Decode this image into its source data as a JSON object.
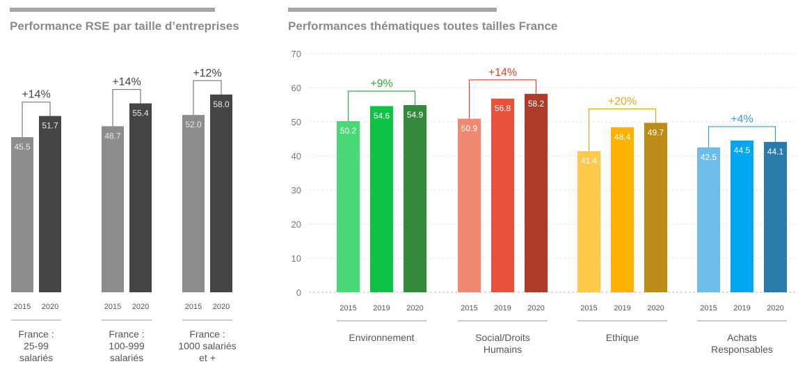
{
  "chart_data": [
    {
      "type": "bar",
      "title": "Performance RSE par taille d’entreprises",
      "series": [
        {
          "name": "2015",
          "color": "#8c8c8c"
        },
        {
          "name": "2020",
          "color": "#454545"
        }
      ],
      "groups": [
        {
          "label_lines": [
            "France :",
            "25-99",
            "salariés"
          ],
          "values": [
            45.5,
            51.7
          ],
          "years": [
            "2015",
            "2020"
          ],
          "change": "+14%"
        },
        {
          "label_lines": [
            "France :",
            "100-999",
            "salariés"
          ],
          "values": [
            48.7,
            55.4
          ],
          "years": [
            "2015",
            "2020"
          ],
          "change": "+14%"
        },
        {
          "label_lines": [
            "France :",
            "1000 salariés",
            "et +"
          ],
          "values": [
            52.0,
            58.0
          ],
          "years": [
            "2015",
            "2020"
          ],
          "change": "+12%"
        }
      ],
      "ylim": [
        0,
        70
      ],
      "bracket_color": "#7a7a7a"
    },
    {
      "type": "bar",
      "title": "Performances thématiques toutes tailles France",
      "ylim": [
        0,
        70
      ],
      "yticks": [
        0,
        10,
        20,
        30,
        40,
        50,
        60,
        70
      ],
      "groups": [
        {
          "label_lines": [
            "Environnement"
          ],
          "years": [
            "2015",
            "2019",
            "2020"
          ],
          "values": [
            50.2,
            54.6,
            54.9
          ],
          "colors": [
            "#4cd877",
            "#0ec245",
            "#35893a"
          ],
          "change": "+9%",
          "change_color": "#35a33f"
        },
        {
          "label_lines": [
            "Social/Droits",
            "Humains"
          ],
          "years": [
            "2015",
            "2019",
            "2020"
          ],
          "values": [
            50.9,
            56.8,
            58.2
          ],
          "colors": [
            "#f08872",
            "#e9523a",
            "#ad3b27"
          ],
          "change": "+14%",
          "change_color": "#e2442b"
        },
        {
          "label_lines": [
            "Ethique"
          ],
          "years": [
            "2015",
            "2019",
            "2020"
          ],
          "values": [
            41.4,
            48.4,
            49.7
          ],
          "colors": [
            "#ffc94d",
            "#ffb300",
            "#bb8c17"
          ],
          "change": "+20%",
          "change_color": "#e0a81c"
        },
        {
          "label_lines": [
            "Achats",
            "Responsables"
          ],
          "years": [
            "2015",
            "2019",
            "2020"
          ],
          "values": [
            42.5,
            44.5,
            44.1
          ],
          "colors": [
            "#6dbde8",
            "#00a6ef",
            "#2a7aaa"
          ],
          "change": "+4%",
          "change_color": "#3b9ad1"
        }
      ]
    }
  ]
}
